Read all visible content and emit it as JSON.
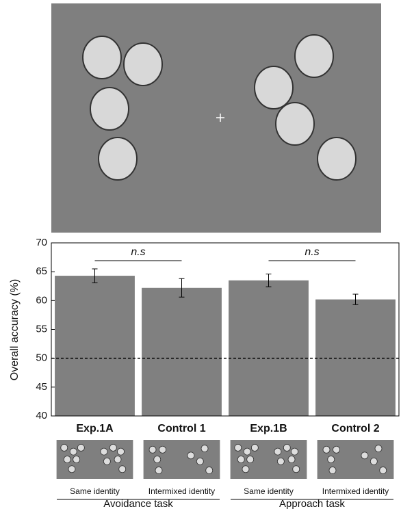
{
  "chart_data": {
    "type": "bar",
    "ylabel": "Overall accuracy (%)",
    "categories": [
      "Exp.1A",
      "Control 1",
      "Exp.1B",
      "Control 2"
    ],
    "values": [
      64.3,
      62.2,
      63.5,
      60.2
    ],
    "errors": [
      1.2,
      1.6,
      1.1,
      0.9
    ],
    "color": "#808080",
    "ylim": [
      40,
      70
    ],
    "yticks": [
      40,
      45,
      50,
      55,
      60,
      65,
      70
    ],
    "reference_line": 50,
    "annotations": [
      "n.s",
      "n.s"
    ],
    "sublabels": [
      "Same identity",
      "Intermixed identity",
      "Same identity",
      "Intermixed identity"
    ],
    "groups": [
      "Avoidance task",
      "Approach task"
    ]
  }
}
